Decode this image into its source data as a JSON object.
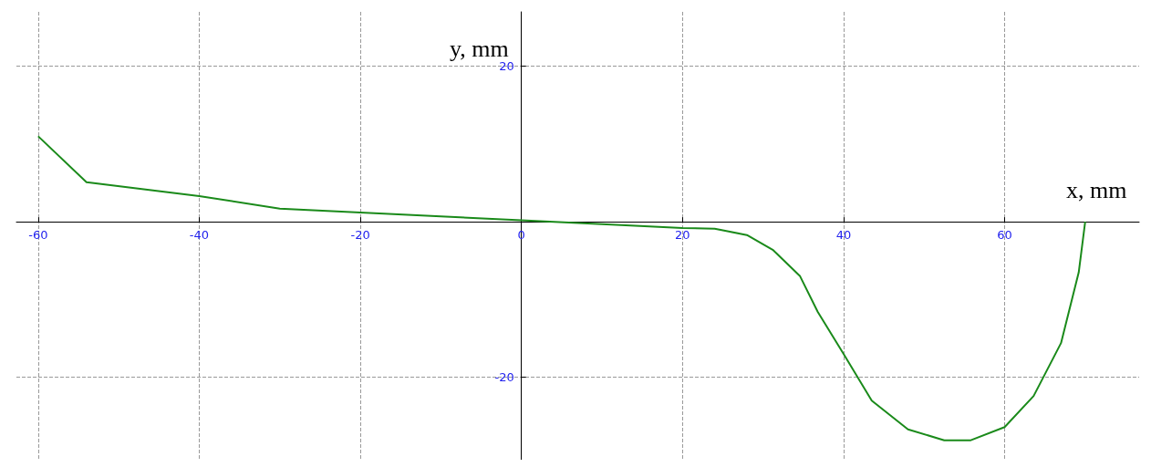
{
  "chart_data": {
    "type": "line",
    "xlabel": "x, mm",
    "ylabel": "y, mm",
    "x": [
      -60,
      -54,
      -40,
      -30,
      -20,
      -10,
      0,
      10,
      20,
      24,
      28,
      31.2,
      34.6,
      36.8,
      40,
      43.5,
      48,
      52.5,
      55.8,
      60,
      63.6,
      67,
      69.2,
      70
    ],
    "series": [
      {
        "color": "#1a8a1a",
        "values": [
          11,
          5.1,
          3.3,
          1.7,
          1.2,
          0.7,
          0.2,
          -0.3,
          -0.8,
          -0.9,
          -1.7,
          -3.6,
          -7,
          -11.6,
          -17,
          -23,
          -26.7,
          -28.1,
          -28.1,
          -26.4,
          -22.4,
          -15.6,
          -6.5,
          0
        ]
      }
    ],
    "xlim": [
      -62.7,
      76.7
    ],
    "ylim": [
      -30.6,
      27
    ],
    "xticks": [
      -60,
      -40,
      -20,
      0,
      20,
      40,
      60
    ],
    "yticks": [
      -20,
      {
        "value": 0,
        "label": null
      },
      20
    ],
    "grid": true,
    "marker": "none",
    "line_style": "solid"
  }
}
